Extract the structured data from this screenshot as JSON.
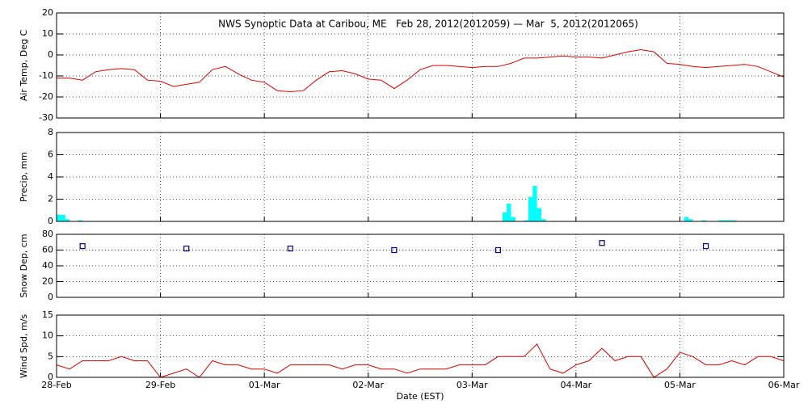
{
  "chart_data": [
    {
      "type": "line",
      "title": "NWS Synoptic Data at Caribou, ME   Feb 28, 2012(2012059) — Mar  5, 2012(2012065)",
      "ylabel": "Air Temp, Deg C",
      "color": "#dd0000",
      "x": [
        0,
        0.125,
        0.25,
        0.375,
        0.5,
        0.625,
        0.75,
        0.875,
        1,
        1.125,
        1.25,
        1.375,
        1.5,
        1.625,
        1.75,
        1.875,
        2,
        2.125,
        2.25,
        2.375,
        2.5,
        2.625,
        2.75,
        2.875,
        3,
        3.125,
        3.25,
        3.375,
        3.5,
        3.625,
        3.75,
        3.875,
        4,
        4.125,
        4.25,
        4.375,
        4.5,
        4.625,
        4.75,
        4.875,
        5,
        5.125,
        5.25,
        5.375,
        5.5,
        5.625,
        5.75,
        5.875,
        6,
        6.125,
        6.25,
        6.375,
        6.5,
        6.625,
        6.75,
        6.875,
        7
      ],
      "values": [
        -11,
        -11,
        -12,
        -8,
        -7,
        -6.5,
        -7,
        -12,
        -12.5,
        -15,
        -14,
        -13,
        -7,
        -5.5,
        -9,
        -12,
        -13,
        -17,
        -17.5,
        -17,
        -12,
        -8,
        -7.5,
        -9,
        -11.5,
        -12,
        -16,
        -12,
        -7,
        -5,
        -5,
        -5.5,
        -6,
        -5.5,
        -5.5,
        -4,
        -1.5,
        -1.5,
        -1,
        -0.5,
        -1,
        -1,
        -1.5,
        0,
        1.5,
        2.5,
        1.5,
        -4,
        -4.5,
        -5.5,
        -6,
        -5.5,
        -5,
        -4.5,
        -5.5,
        -8,
        -10.5
      ],
      "xlim": [
        0,
        7
      ],
      "xticks": [
        0,
        1,
        2,
        3,
        4,
        5,
        6,
        7
      ],
      "ylim": [
        -30,
        20
      ],
      "yticks": [
        -30,
        -20,
        -10,
        0,
        10,
        20
      ],
      "grid": true
    },
    {
      "type": "bar",
      "ylabel": "Precip, mm",
      "color": "#00ffff",
      "bar_width": 0.0417,
      "x": [
        0,
        0.042,
        0.083,
        0.208,
        4.292,
        4.333,
        4.375,
        4.5,
        4.542,
        4.583,
        4.625,
        4.667,
        6.042,
        6.083,
        6.208,
        6.375,
        6.417,
        6.458,
        6.5
      ],
      "values": [
        0.6,
        0.6,
        0.2,
        0.1,
        0.8,
        1.6,
        0.4,
        0.1,
        2.2,
        3.2,
        1.2,
        0.2,
        0.4,
        0.2,
        0.1,
        0.1,
        0.1,
        0.1,
        0.1
      ],
      "xlim": [
        0,
        7
      ],
      "xticks": [
        0,
        1,
        2,
        3,
        4,
        5,
        6,
        7
      ],
      "ylim": [
        0,
        8
      ],
      "yticks": [
        0,
        2,
        4,
        6,
        8
      ],
      "grid": true
    },
    {
      "type": "scatter",
      "ylabel": "Snow Dep, cm",
      "color": "#000080",
      "x": [
        0.25,
        1.25,
        2.25,
        3.25,
        4.25,
        5.25,
        6.25
      ],
      "values": [
        65,
        62,
        62,
        60,
        60,
        69,
        65
      ],
      "xlim": [
        0,
        7
      ],
      "xticks": [
        0,
        1,
        2,
        3,
        4,
        5,
        6,
        7
      ],
      "ylim": [
        0,
        80
      ],
      "yticks": [
        0,
        20,
        40,
        60,
        80
      ],
      "grid": true
    },
    {
      "type": "line",
      "ylabel": "Wind Spd, m/s",
      "xlabel": "Date (EST)",
      "color": "#dd0000",
      "x": [
        0,
        0.125,
        0.25,
        0.375,
        0.5,
        0.625,
        0.75,
        0.875,
        1,
        1.125,
        1.25,
        1.375,
        1.5,
        1.625,
        1.75,
        1.875,
        2,
        2.125,
        2.25,
        2.375,
        2.5,
        2.625,
        2.75,
        2.875,
        3,
        3.125,
        3.25,
        3.375,
        3.5,
        3.625,
        3.75,
        3.875,
        4,
        4.125,
        4.25,
        4.375,
        4.5,
        4.625,
        4.75,
        4.875,
        5,
        5.125,
        5.25,
        5.375,
        5.5,
        5.625,
        5.75,
        5.875,
        6,
        6.125,
        6.25,
        6.375,
        6.5,
        6.625,
        6.75,
        6.875,
        7
      ],
      "values": [
        3,
        2,
        4,
        4,
        4,
        5,
        4,
        4,
        0,
        1,
        2,
        0,
        4,
        3,
        3,
        2,
        2,
        1,
        3,
        3,
        3,
        3,
        2,
        3,
        3,
        2,
        2,
        1,
        2,
        2,
        2,
        3,
        3,
        3,
        5,
        5,
        5,
        8,
        2,
        1,
        3,
        4,
        7,
        4,
        5,
        5,
        0,
        2,
        6,
        5,
        3,
        3,
        4,
        3,
        5,
        5,
        4
      ],
      "xlim": [
        0,
        7
      ],
      "xticks": [
        {
          "value": 0,
          "label": "28-Feb"
        },
        {
          "value": 1,
          "label": "29-Feb"
        },
        {
          "value": 2,
          "label": "01-Mar"
        },
        {
          "value": 3,
          "label": "02-Mar"
        },
        {
          "value": 4,
          "label": "03-Mar"
        },
        {
          "value": 5,
          "label": "04-Mar"
        },
        {
          "value": 6,
          "label": "05-Mar"
        },
        {
          "value": 7,
          "label": "06-Mar"
        }
      ],
      "ylim": [
        0,
        15
      ],
      "yticks": [
        0,
        5,
        10,
        15
      ],
      "grid": true
    }
  ]
}
